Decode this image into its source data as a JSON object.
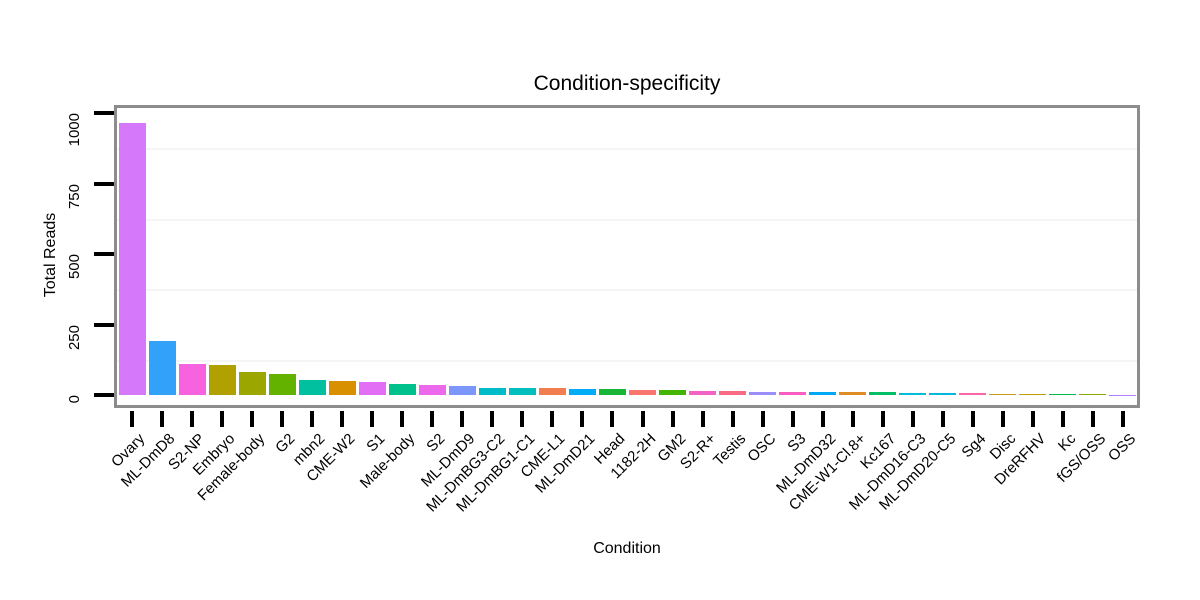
{
  "chart_data": {
    "type": "bar",
    "title": "Condition-specificity",
    "xlabel": "Condition",
    "ylabel": "Total Reads",
    "ylim": [
      0,
      1020
    ],
    "yticks": [
      0,
      250,
      500,
      750,
      1000
    ],
    "ytick_labels": [
      "0",
      "250",
      "500",
      "750",
      "1000"
    ],
    "minor_gridlines": [
      125,
      375,
      625,
      875
    ],
    "grid": "faint horizontal minor gridlines only",
    "legend": "none",
    "x_label_angle_deg": 45,
    "categories": [
      "Ovary",
      "ML-DmD8",
      "S2-NP",
      "Embryo",
      "Female-body",
      "G2",
      "mbn2",
      "CME-W2",
      "S1",
      "Male-body",
      "S2",
      "ML-DmD9",
      "ML-DmBG3-C2",
      "ML-DmBG1-C1",
      "CME-L1",
      "ML-DmD21",
      "Head",
      "1182-2H",
      "GM2",
      "S2-R+",
      "Testis",
      "OSC",
      "S3",
      "ML-DmD32",
      "CME-W1-Cl.8+",
      "Kc167",
      "ML-DmD16-C3",
      "ML-DmD20-C5",
      "Sg4",
      "Disc",
      "DreRFHV",
      "Kc",
      "fGS/OSS",
      "OSS"
    ],
    "values": [
      965,
      190,
      110,
      105,
      80,
      76,
      55,
      50,
      47,
      38,
      37,
      31,
      26,
      26,
      25,
      23,
      21,
      19,
      18,
      15,
      13,
      12,
      12,
      10,
      10,
      9,
      8,
      7,
      7,
      5,
      5,
      4,
      2,
      1
    ],
    "colors": [
      "#D678FA",
      "#31A1FA",
      "#F763DF",
      "#B0A100",
      "#9BA700",
      "#64B200",
      "#00C0A0",
      "#D89000",
      "#E36EF6",
      "#00C08C",
      "#EC69EC",
      "#7D96FB",
      "#00BCC8",
      "#00BFBC",
      "#F17D50",
      "#00ACF5",
      "#19B534",
      "#F8766D",
      "#43B500",
      "#F562C6",
      "#F96A83",
      "#9B8EFA",
      "#F85EBF",
      "#00A7F5",
      "#E08B23",
      "#00BE66",
      "#00BBD8",
      "#00B7DE",
      "#FA66A8",
      "#C99C20",
      "#BC9F00",
      "#00B94E",
      "#85AB00",
      "#B47CFF"
    ]
  },
  "styles": {
    "panel_border": "#8C8C8C",
    "tick_color": "#000000",
    "minor_grid": "#F5F5F5",
    "background": "#FFFFFF",
    "text": "#000000"
  }
}
